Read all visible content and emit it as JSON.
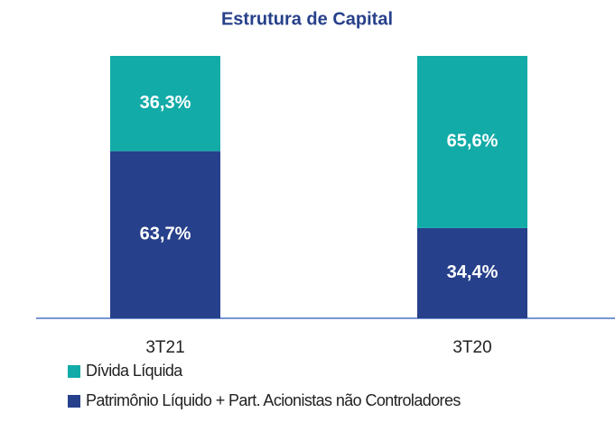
{
  "chart_data": {
    "type": "stacked_bar",
    "title": "Estrutura de Capital",
    "categories": [
      "3T21",
      "3T20"
    ],
    "series": [
      {
        "name": "Patrimônio Líquido + Part. Acionistas não Controladores",
        "color": "#27408b",
        "values": [
          63.7,
          34.4
        ],
        "value_labels": [
          "63,7%",
          "34,4%"
        ]
      },
      {
        "name": "Dívida Líquida",
        "color": "#12aba8",
        "values": [
          36.3,
          65.6
        ],
        "value_labels": [
          "36,3%",
          "65,6%"
        ]
      }
    ],
    "ylim": [
      0,
      100
    ],
    "grid": false
  }
}
